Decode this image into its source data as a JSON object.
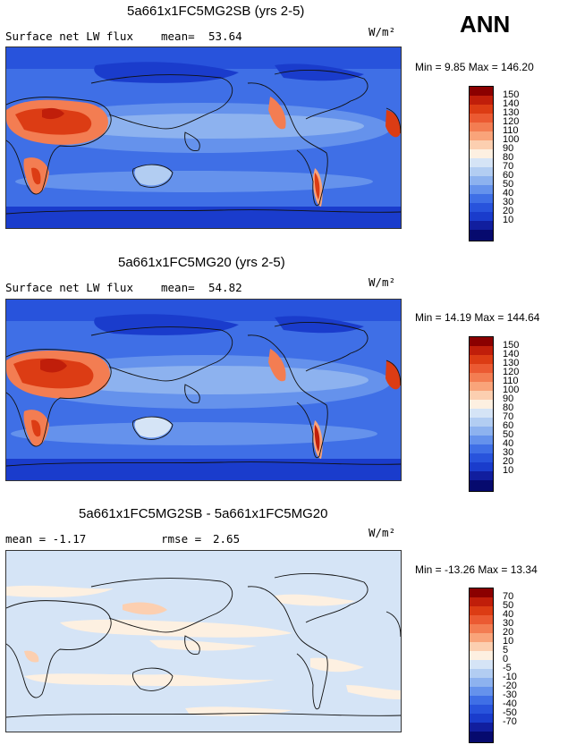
{
  "season": "ANN",
  "units": "W/m²",
  "panels": [
    {
      "title": "5a661x1FC5MG2SB (yrs 2-5)",
      "left_label": "Surface net LW flux",
      "stat_label": "mean=",
      "stat_value": "53.64",
      "range": "Min =    9.85 Max = 146.20",
      "levels": [
        "150",
        "140",
        "130",
        "120",
        "110",
        "100",
        "90",
        "80",
        "70",
        "60",
        "50",
        "40",
        "30",
        "20",
        "10"
      ],
      "colors": [
        "#8b0000",
        "#c01e0a",
        "#dc3c14",
        "#eb5a32",
        "#f37d52",
        "#f9a47a",
        "#fccfb0",
        "#fdf0e1",
        "#d5e4f6",
        "#b2cdf2",
        "#8db2ef",
        "#6592ec",
        "#3f6fe6",
        "#2853dc",
        "#1a3ccc",
        "#111e9e",
        "#060a6e"
      ]
    },
    {
      "title": "5a661x1FC5MG20 (yrs 2-5)",
      "left_label": "Surface net LW flux",
      "stat_label": "mean=",
      "stat_value": "54.82",
      "range": "Min =  14.19 Max = 144.64",
      "levels": [
        "150",
        "140",
        "130",
        "120",
        "110",
        "100",
        "90",
        "80",
        "70",
        "60",
        "50",
        "40",
        "30",
        "20",
        "10"
      ],
      "colors": [
        "#8b0000",
        "#c01e0a",
        "#dc3c14",
        "#eb5a32",
        "#f37d52",
        "#f9a47a",
        "#fccfb0",
        "#fdf0e1",
        "#d5e4f6",
        "#b2cdf2",
        "#8db2ef",
        "#6592ec",
        "#3f6fe6",
        "#2853dc",
        "#1a3ccc",
        "#111e9e",
        "#060a6e"
      ]
    },
    {
      "title": "5a661x1FC5MG2SB - 5a661x1FC5MG20",
      "left_label": "mean =   -1.17",
      "stat_label": "rmse =",
      "stat_value": "2.65",
      "range": "Min = -13.26 Max =  13.34",
      "levels": [
        "70",
        "50",
        "40",
        "30",
        "20",
        "10",
        "5",
        "0",
        "-5",
        "-10",
        "-20",
        "-30",
        "-40",
        "-50",
        "-70"
      ],
      "colors": [
        "#8b0000",
        "#c01e0a",
        "#dc3c14",
        "#eb5a32",
        "#f37d52",
        "#f9a47a",
        "#fccfb0",
        "#fdf0e1",
        "#d5e4f6",
        "#b2cdf2",
        "#8db2ef",
        "#6592ec",
        "#3f6fe6",
        "#2853dc",
        "#1a3ccc",
        "#111e9e",
        "#060a6e"
      ]
    }
  ]
}
